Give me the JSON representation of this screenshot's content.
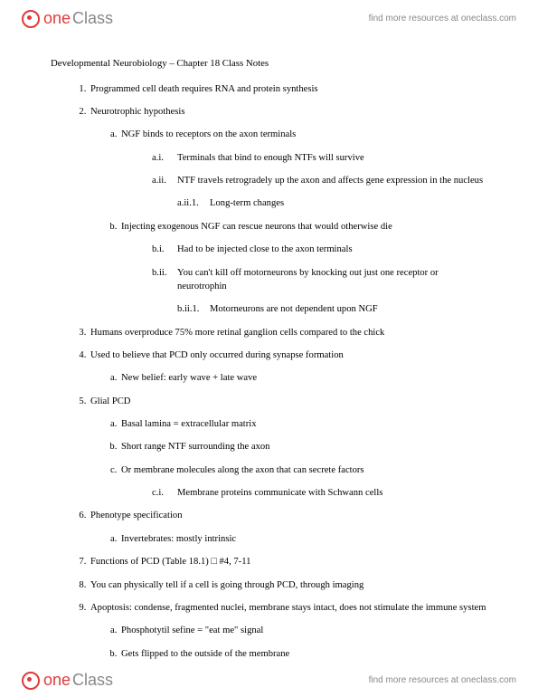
{
  "brand": {
    "one": "one",
    "class": "Class"
  },
  "header_link": "find more resources at oneclass.com",
  "footer_link": "find more resources at oneclass.com",
  "title": "Developmental Neurobiology – Chapter 18 Class Notes",
  "items": {
    "i1": "Programmed cell death requires RNA and protein synthesis",
    "i2": "Neurotrophic hypothesis",
    "i2a": "NGF binds to receptors on the axon terminals",
    "i2a_i_lbl": "a.i.",
    "i2a_i": "Terminals that bind to enough NTFs will survive",
    "i2a_ii_lbl": "a.ii.",
    "i2a_ii": "NTF travels retrogradely up the axon and affects gene expression in the nucleus",
    "i2a_ii_1_lbl": "a.ii.1.",
    "i2a_ii_1": "Long-term changes",
    "i2b": "Injecting exogenous NGF can rescue neurons that would otherwise die",
    "i2b_i_lbl": "b.i.",
    "i2b_i": "Had to be injected close to the axon terminals",
    "i2b_ii_lbl": "b.ii.",
    "i2b_ii": "You can't kill off motorneurons by knocking out just one receptor or neurotrophin",
    "i2b_ii_1_lbl": "b.ii.1.",
    "i2b_ii_1": "Motorneurons are not dependent upon NGF",
    "i3": "Humans overproduce 75% more retinal ganglion cells compared to the chick",
    "i4": "Used to believe that PCD only occurred during synapse formation",
    "i4a": "New belief: early wave + late wave",
    "i5": "Glial PCD",
    "i5a": "Basal lamina = extracellular matrix",
    "i5b": "Short range NTF surrounding the axon",
    "i5c": "Or membrane molecules along the axon that can secrete factors",
    "i5c_i_lbl": "c.i.",
    "i5c_i": "Membrane proteins communicate with Schwann cells",
    "i6": "Phenotype specification",
    "i6a": "Invertebrates: mostly intrinsic",
    "i7_pre": "Functions of PCD (Table 18.1) ",
    "i7_sq": "□",
    "i7_post": " #4, 7-11",
    "i8": "You can physically tell if a cell is going through PCD, through imaging",
    "i9": "Apoptosis: condense, fragmented nuclei, membrane stays intact, does not stimulate the immune system",
    "i9a": "Phosphotytil sefine = \"eat me\" signal",
    "i9b": "Gets flipped to the outside of the membrane"
  }
}
